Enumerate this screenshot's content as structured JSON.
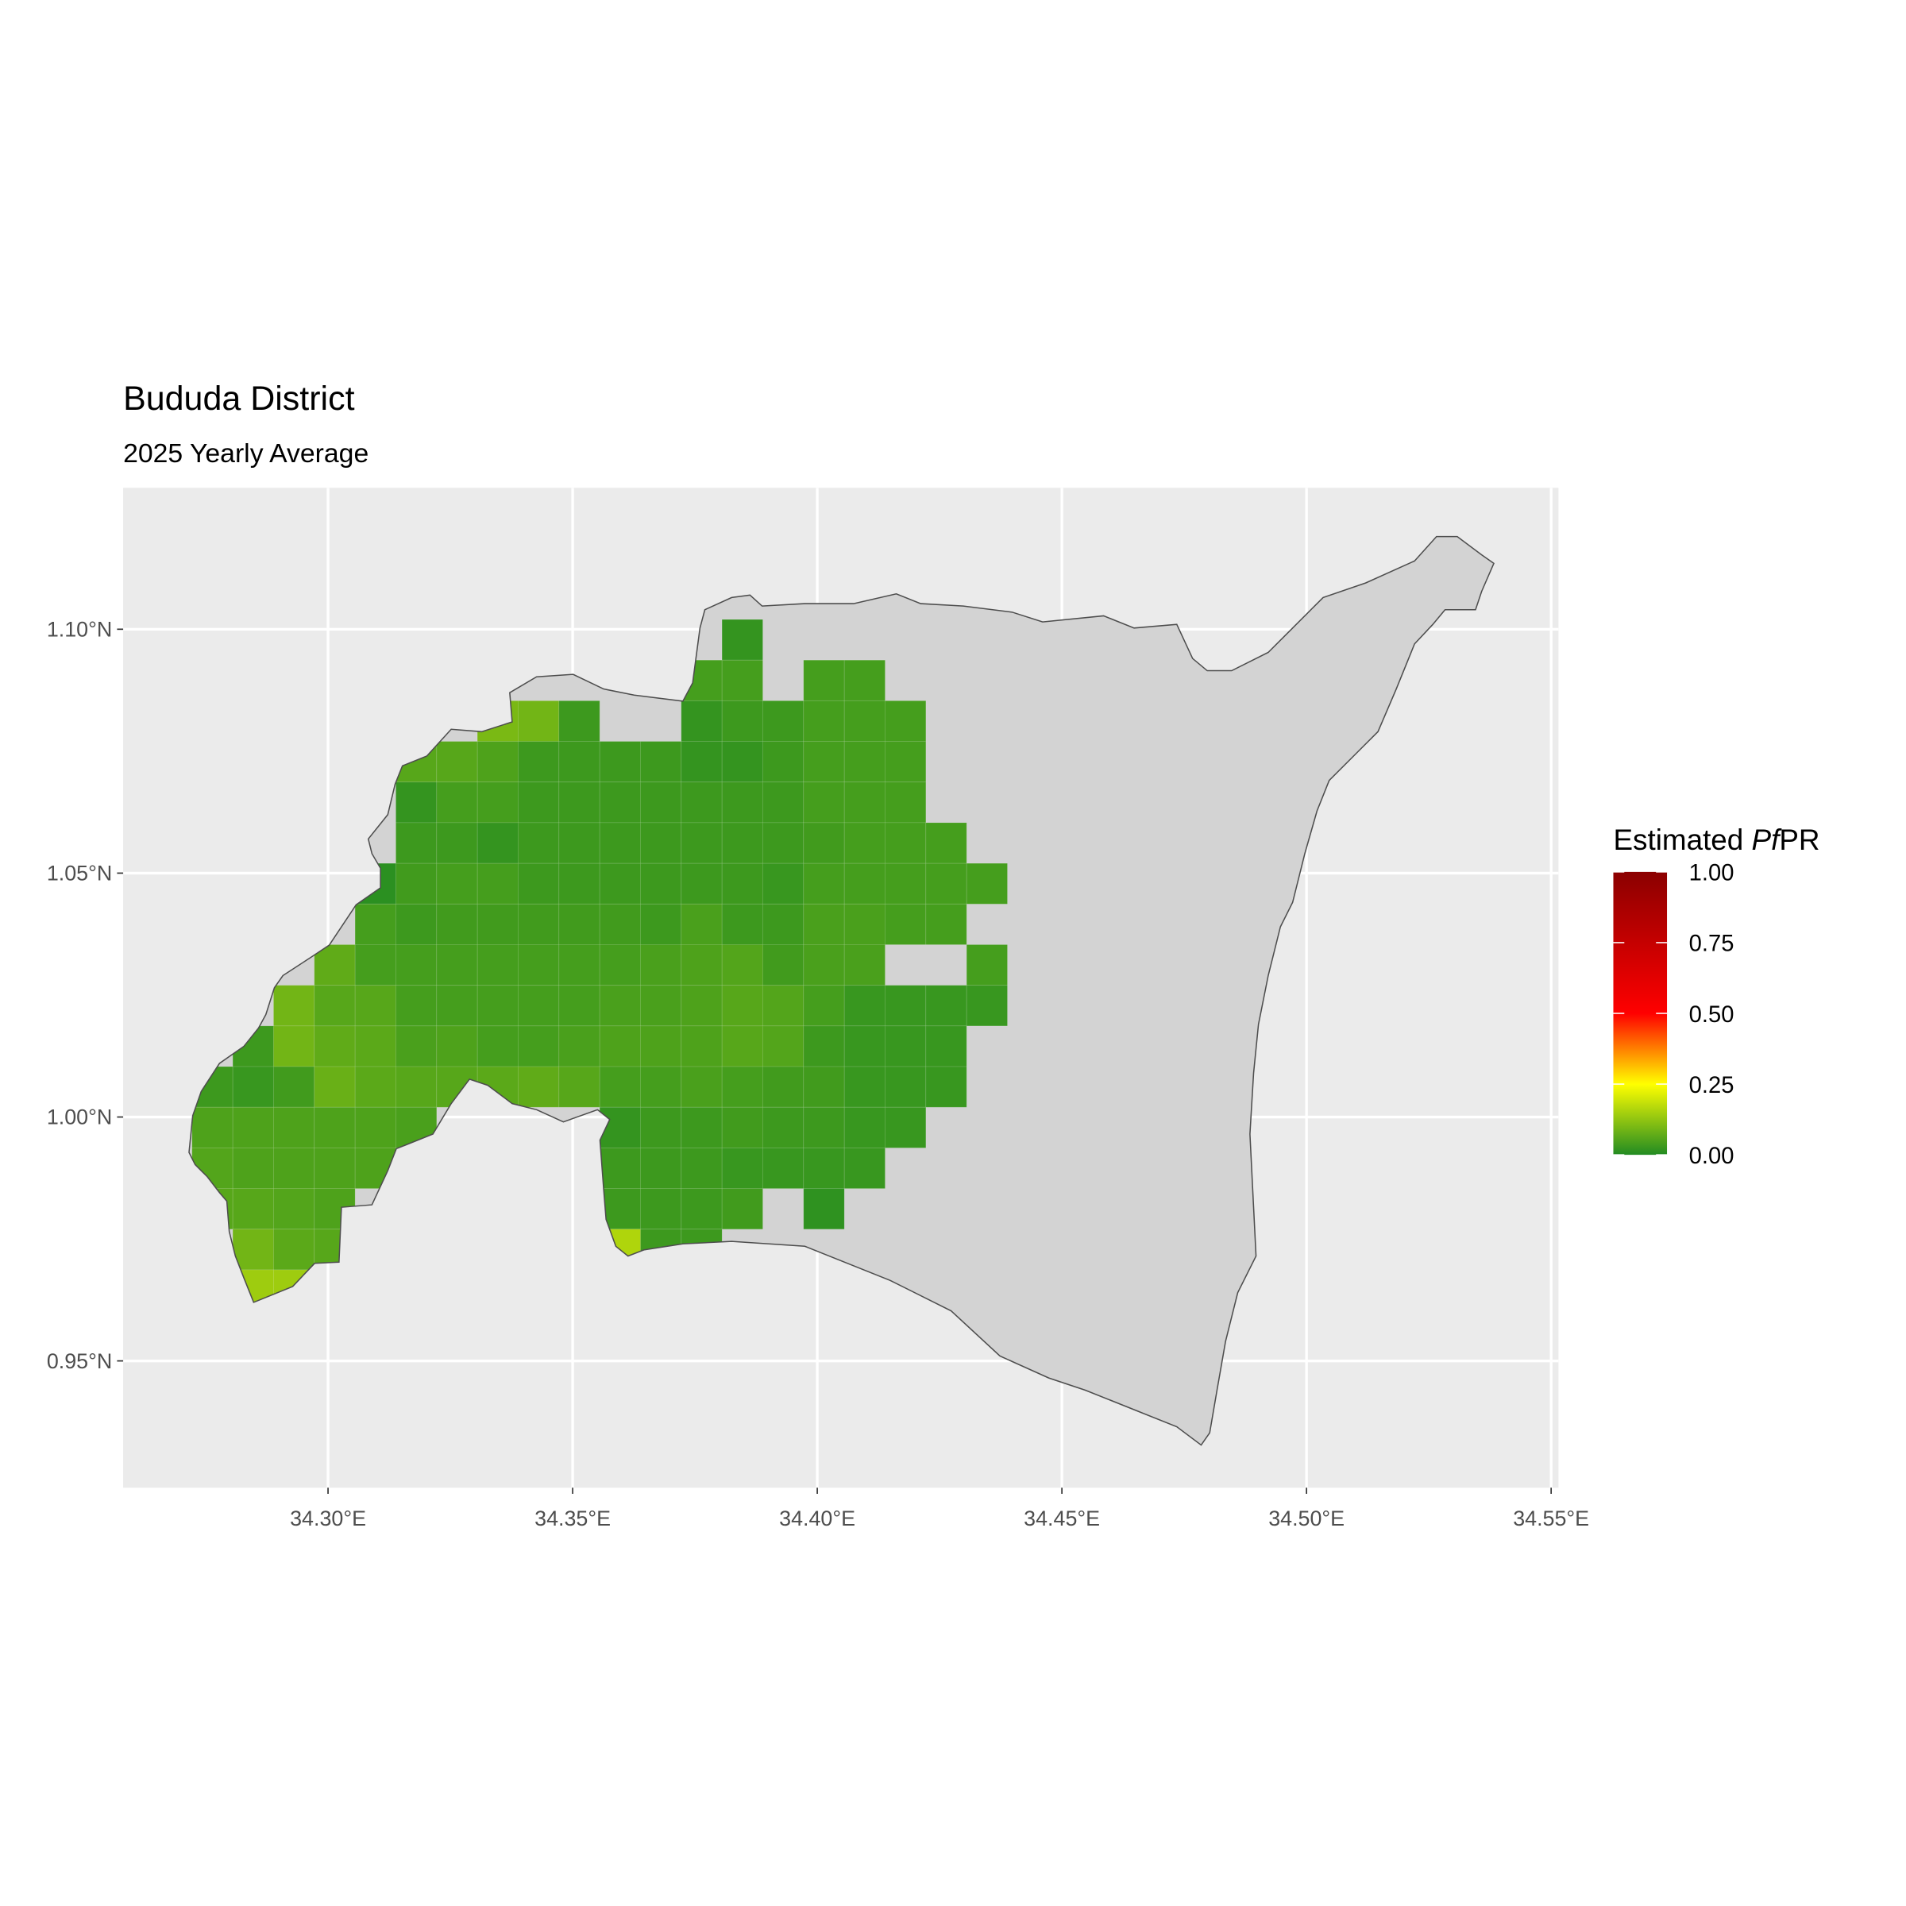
{
  "title": "Bududa District",
  "subtitle": "2025 Yearly Average",
  "chart_data": {
    "type": "heatmap",
    "title": "Bududa District",
    "subtitle": "2025 Yearly Average",
    "x_ticks": [
      "34.30°E",
      "34.35°E",
      "34.40°E",
      "34.45°E",
      "34.50°E",
      "34.55°E"
    ],
    "x_tick_values": [
      34.3,
      34.35,
      34.4,
      34.45,
      34.5,
      34.55
    ],
    "y_ticks": [
      "0.95°N",
      "1.00°N",
      "1.05°N",
      "1.10°N"
    ],
    "y_tick_values": [
      0.95,
      1.0,
      1.05,
      1.1
    ],
    "xlim": [
      34.258,
      34.552
    ],
    "ylim": [
      0.924,
      1.129
    ],
    "grid": true,
    "legend": {
      "title_prefix": "Estimated ",
      "title_italic": "Pf",
      "title_suffix": "PR",
      "placement": "right",
      "labels": [
        "1.00",
        "0.75",
        "0.50",
        "0.25",
        "0.00"
      ],
      "values": [
        1.0,
        0.75,
        0.5,
        0.25,
        0.0
      ],
      "color_stops": [
        {
          "value": 0.0,
          "color": "#228B22"
        },
        {
          "value": 0.25,
          "color": "#FFFF00"
        },
        {
          "value": 0.5,
          "color": "#FF0000"
        },
        {
          "value": 1.0,
          "color": "#8B0000"
        }
      ]
    },
    "colors": {
      "panel": "#EBEBEB",
      "district_fill": "#D3D3D3",
      "district_outline": "#4D4D4D",
      "gridline": "#FFFFFF"
    },
    "cell_size_deg": 0.008333,
    "grid_west_lon": 34.2722,
    "grid_north_lat": 1.102,
    "cells": [
      [
        null,
        null,
        null,
        null,
        null,
        null,
        null,
        null,
        null,
        null,
        null,
        null,
        null,
        0.02,
        null,
        null,
        null,
        null,
        null,
        null
      ],
      [
        null,
        null,
        null,
        null,
        null,
        null,
        null,
        null,
        null,
        null,
        null,
        null,
        0.04,
        0.04,
        null,
        0.04,
        0.04,
        null,
        null,
        null
      ],
      [
        null,
        null,
        null,
        null,
        null,
        null,
        null,
        0.1,
        0.09,
        0.03,
        null,
        null,
        0.02,
        0.03,
        0.03,
        0.04,
        0.04,
        0.04,
        null,
        null
      ],
      [
        null,
        null,
        null,
        null,
        null,
        0.06,
        0.06,
        0.05,
        0.03,
        0.03,
        0.03,
        0.03,
        0.02,
        0.02,
        0.03,
        0.04,
        0.04,
        0.04,
        null,
        null
      ],
      [
        null,
        null,
        null,
        null,
        null,
        0.02,
        0.04,
        0.04,
        0.03,
        0.03,
        0.03,
        0.03,
        0.03,
        0.03,
        0.03,
        0.04,
        0.04,
        0.04,
        null,
        null
      ],
      [
        null,
        null,
        null,
        null,
        null,
        0.03,
        0.03,
        0.02,
        0.03,
        0.03,
        0.03,
        0.03,
        0.03,
        0.03,
        0.03,
        0.035,
        0.04,
        0.04,
        0.04,
        null
      ],
      [
        null,
        null,
        null,
        null,
        0.01,
        0.035,
        0.04,
        0.04,
        0.03,
        0.03,
        0.03,
        0.03,
        0.03,
        0.03,
        0.025,
        0.04,
        0.04,
        0.04,
        0.04,
        0.04
      ],
      [
        null,
        null,
        null,
        null,
        0.04,
        0.03,
        0.035,
        0.035,
        0.035,
        0.035,
        0.035,
        0.03,
        0.045,
        0.03,
        0.03,
        0.045,
        0.045,
        0.04,
        0.04,
        null
      ],
      [
        null,
        null,
        null,
        0.07,
        0.04,
        0.04,
        0.04,
        0.04,
        0.04,
        0.04,
        0.04,
        0.045,
        0.05,
        0.055,
        0.035,
        0.045,
        0.045,
        null,
        null,
        0.04
      ],
      [
        null,
        null,
        0.09,
        0.06,
        0.06,
        0.04,
        0.04,
        0.04,
        0.04,
        0.04,
        0.045,
        0.045,
        0.05,
        0.06,
        0.055,
        0.04,
        0.025,
        0.025,
        0.025,
        0.025
      ],
      [
        null,
        0.03,
        0.09,
        0.07,
        0.065,
        0.045,
        0.05,
        0.04,
        0.04,
        0.045,
        0.05,
        0.05,
        0.05,
        0.06,
        0.055,
        0.03,
        0.025,
        0.025,
        0.025,
        null
      ],
      [
        0.03,
        0.025,
        0.035,
        0.08,
        0.065,
        0.06,
        0.06,
        0.065,
        0.07,
        0.06,
        0.04,
        0.04,
        0.045,
        0.04,
        0.035,
        0.035,
        0.025,
        0.025,
        0.025,
        null
      ],
      [
        0.05,
        0.05,
        0.05,
        0.05,
        0.05,
        0.045,
        null,
        null,
        null,
        null,
        0.02,
        0.03,
        0.03,
        0.035,
        0.03,
        0.03,
        0.025,
        0.025,
        null,
        null
      ],
      [
        0.055,
        0.05,
        0.05,
        0.05,
        0.05,
        null,
        null,
        null,
        null,
        null,
        0.03,
        0.03,
        0.03,
        0.025,
        0.025,
        0.025,
        0.025,
        null,
        null,
        null
      ],
      [
        0.06,
        0.06,
        0.055,
        0.05,
        null,
        null,
        null,
        null,
        null,
        null,
        0.03,
        0.03,
        0.03,
        0.035,
        null,
        0.015,
        null,
        null,
        null,
        null
      ],
      [
        null,
        0.09,
        0.065,
        0.06,
        null,
        null,
        null,
        null,
        null,
        null,
        0.16,
        0.03,
        0.03,
        null,
        null,
        null,
        null,
        null,
        null,
        null
      ],
      [
        null,
        0.14,
        0.14,
        null,
        null,
        null,
        null,
        null,
        null,
        null,
        null,
        null,
        null,
        null,
        null,
        null,
        null,
        null,
        null,
        null
      ]
    ]
  }
}
